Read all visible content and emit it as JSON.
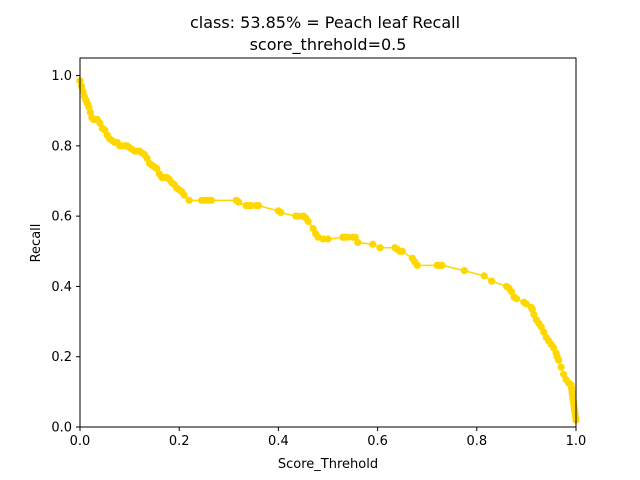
{
  "chart_data": {
    "type": "line",
    "title": "class: 53.85% = Peach leaf Recall",
    "subtitle": "score_threhold=0.5",
    "xlabel": "Score_Threhold",
    "ylabel": "Recall",
    "xlim": [
      0.0,
      1.0
    ],
    "ylim": [
      0.0,
      1.05
    ],
    "x_ticks": [
      "0.0",
      "0.2",
      "0.4",
      "0.6",
      "0.8",
      "1.0"
    ],
    "y_ticks": [
      "0.0",
      "0.2",
      "0.4",
      "0.6",
      "0.8",
      "1.0"
    ],
    "grid": false,
    "series": [
      {
        "color": "#FFD700",
        "marker": "circle",
        "x": [
          0.0,
          0.003,
          0.006,
          0.009,
          0.012,
          0.015,
          0.018,
          0.021,
          0.024,
          0.027,
          0.03,
          0.035,
          0.04,
          0.045,
          0.05,
          0.055,
          0.06,
          0.065,
          0.07,
          0.075,
          0.08,
          0.085,
          0.09,
          0.095,
          0.1,
          0.105,
          0.11,
          0.115,
          0.12,
          0.125,
          0.13,
          0.135,
          0.14,
          0.145,
          0.15,
          0.155,
          0.16,
          0.165,
          0.17,
          0.175,
          0.18,
          0.185,
          0.19,
          0.195,
          0.2,
          0.205,
          0.21,
          0.22,
          0.245,
          0.25,
          0.255,
          0.26,
          0.265,
          0.315,
          0.32,
          0.335,
          0.34,
          0.345,
          0.355,
          0.36,
          0.4,
          0.405,
          0.435,
          0.44,
          0.45,
          0.455,
          0.46,
          0.47,
          0.475,
          0.48,
          0.49,
          0.5,
          0.53,
          0.535,
          0.54,
          0.55,
          0.555,
          0.56,
          0.59,
          0.605,
          0.635,
          0.64,
          0.645,
          0.65,
          0.67,
          0.675,
          0.68,
          0.72,
          0.725,
          0.73,
          0.775,
          0.815,
          0.83,
          0.86,
          0.865,
          0.87,
          0.875,
          0.88,
          0.895,
          0.9,
          0.91,
          0.912,
          0.915,
          0.92,
          0.925,
          0.93,
          0.935,
          0.94,
          0.945,
          0.95,
          0.955,
          0.96,
          0.962,
          0.965,
          0.97,
          0.975,
          0.98,
          0.985,
          0.99,
          0.991,
          0.992,
          0.993,
          0.994,
          0.995,
          0.996,
          0.997,
          0.998,
          0.999,
          1.0
        ],
        "y": [
          0.985,
          0.97,
          0.955,
          0.94,
          0.93,
          0.92,
          0.91,
          0.895,
          0.88,
          0.875,
          0.875,
          0.875,
          0.865,
          0.85,
          0.845,
          0.83,
          0.82,
          0.815,
          0.81,
          0.81,
          0.8,
          0.8,
          0.8,
          0.8,
          0.795,
          0.79,
          0.785,
          0.785,
          0.785,
          0.78,
          0.775,
          0.765,
          0.75,
          0.745,
          0.74,
          0.735,
          0.72,
          0.71,
          0.71,
          0.71,
          0.705,
          0.695,
          0.69,
          0.68,
          0.675,
          0.67,
          0.66,
          0.645,
          0.645,
          0.645,
          0.645,
          0.645,
          0.645,
          0.645,
          0.64,
          0.63,
          0.63,
          0.63,
          0.63,
          0.63,
          0.615,
          0.61,
          0.6,
          0.6,
          0.6,
          0.595,
          0.585,
          0.565,
          0.55,
          0.54,
          0.535,
          0.535,
          0.54,
          0.54,
          0.54,
          0.54,
          0.54,
          0.525,
          0.52,
          0.51,
          0.51,
          0.505,
          0.5,
          0.5,
          0.48,
          0.47,
          0.46,
          0.46,
          0.46,
          0.46,
          0.445,
          0.43,
          0.415,
          0.4,
          0.395,
          0.385,
          0.37,
          0.365,
          0.355,
          0.35,
          0.34,
          0.335,
          0.32,
          0.305,
          0.295,
          0.285,
          0.27,
          0.255,
          0.245,
          0.235,
          0.225,
          0.21,
          0.2,
          0.19,
          0.17,
          0.15,
          0.135,
          0.125,
          0.12,
          0.11,
          0.1,
          0.09,
          0.08,
          0.07,
          0.06,
          0.05,
          0.04,
          0.03,
          0.02
        ]
      }
    ]
  }
}
